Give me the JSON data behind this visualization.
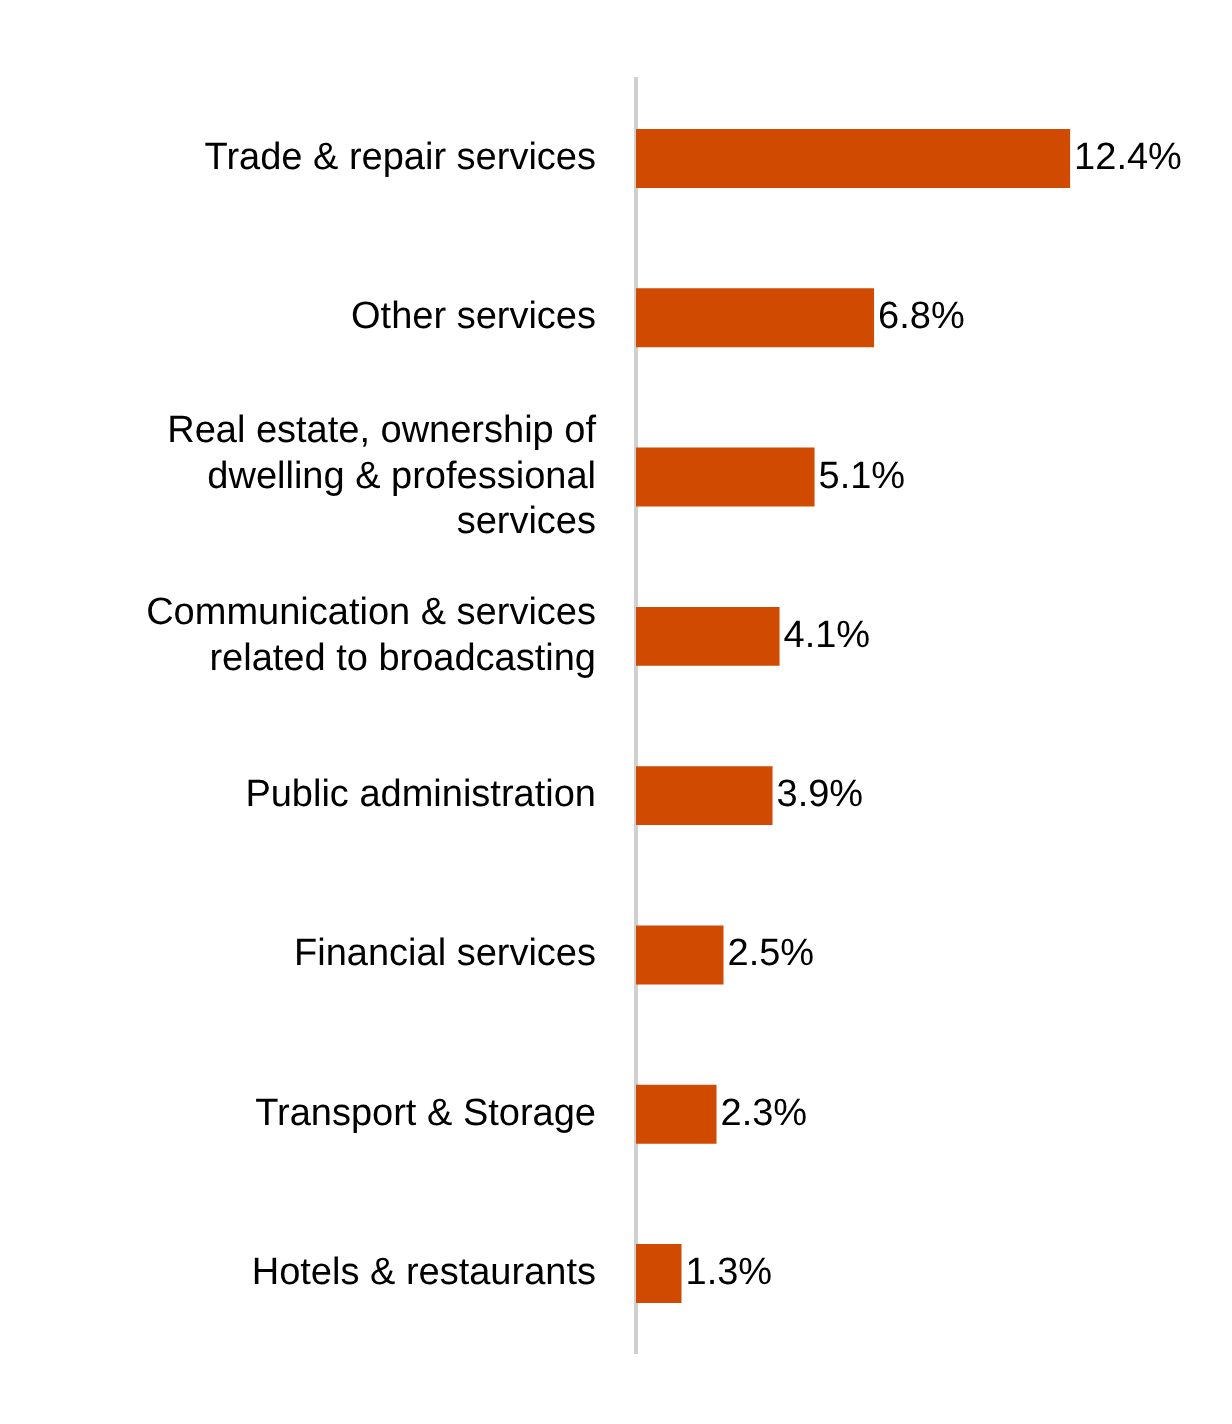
{
  "chart_data": {
    "type": "bar",
    "orientation": "horizontal",
    "categories": [
      "Trade & repair services",
      "Other services",
      "Real estate, ownership of dwelling & professional services",
      "Communication & services related to broadcasting",
      "Public administration",
      "Financial services",
      "Transport & Storage",
      "Hotels & restaurants"
    ],
    "values": [
      12.4,
      6.8,
      5.1,
      4.1,
      3.9,
      2.5,
      2.3,
      1.3
    ],
    "value_labels": [
      "12.4%",
      "6.8%",
      "5.1%",
      "4.1%",
      "3.9%",
      "2.5%",
      "2.3%",
      "1.3%"
    ],
    "color": "#d04a02",
    "legend": false
  }
}
